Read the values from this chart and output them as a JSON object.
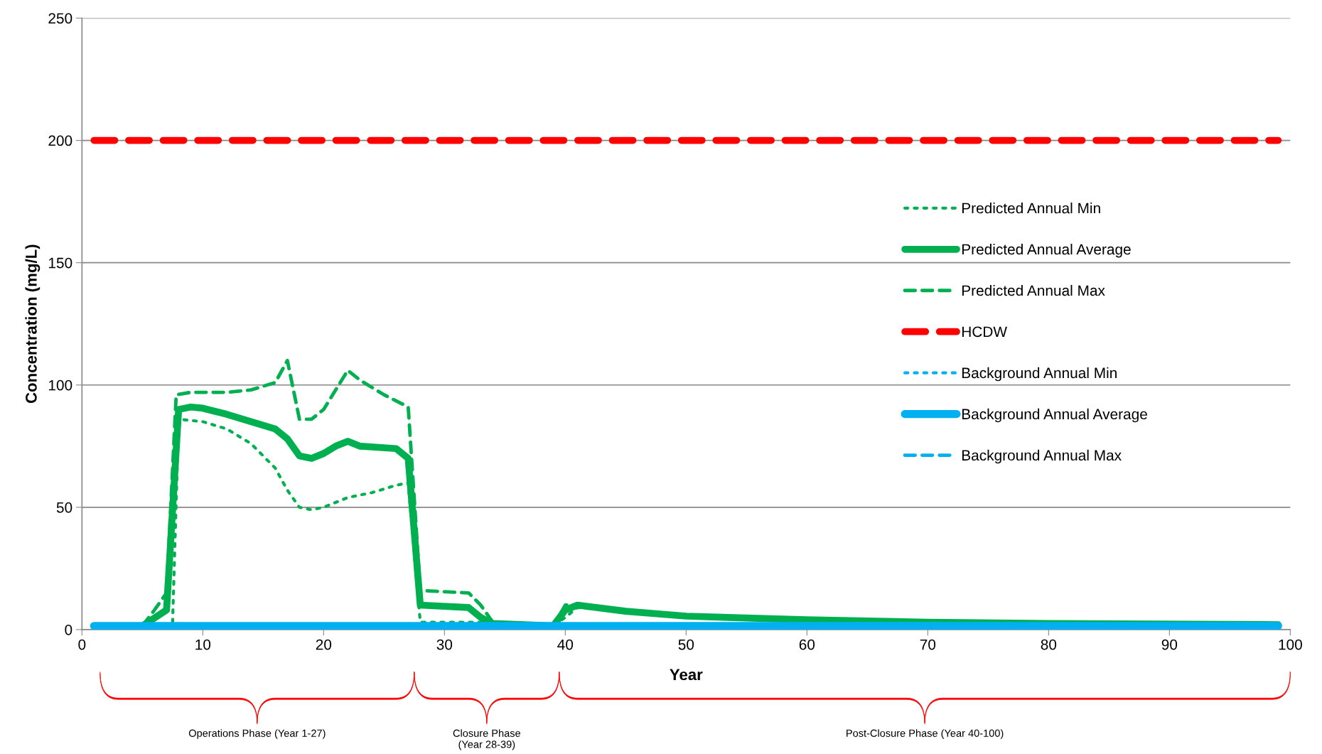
{
  "chart_data": {
    "type": "line",
    "xlabel": "Year",
    "ylabel": "Concentration (mg/L)",
    "xlim": [
      0,
      100
    ],
    "xticks": [
      0,
      10,
      20,
      30,
      40,
      50,
      60,
      70,
      80,
      90,
      100
    ],
    "ylim": [
      0,
      250
    ],
    "yticks": [
      0,
      50,
      100,
      150,
      200,
      250
    ],
    "grid": "y",
    "legend": "right",
    "series": [
      {
        "name": "Predicted Annual Min",
        "color": "#00b050",
        "line_style": "dotted",
        "x": [
          7.5,
          8,
          10,
          12,
          14,
          16,
          17,
          18,
          19,
          20,
          22,
          24,
          26,
          27,
          28,
          33,
          34,
          39,
          40,
          41,
          45,
          50,
          60,
          70,
          80,
          99
        ],
        "values": [
          3,
          86,
          85,
          82,
          76,
          66,
          57,
          50,
          49,
          50,
          54,
          56,
          59,
          60,
          3,
          3,
          2,
          1.5,
          5,
          9,
          7.5,
          5.5,
          4,
          3,
          2.5,
          2
        ]
      },
      {
        "name": "Predicted Annual Average",
        "color": "#00b050",
        "line_style": "solid",
        "x": [
          5,
          7,
          8,
          9,
          10,
          12,
          14,
          16,
          17,
          18,
          19,
          20,
          21,
          22,
          23,
          26,
          27,
          28,
          32,
          33,
          34,
          39,
          40,
          41,
          45,
          50,
          60,
          70,
          80,
          99
        ],
        "values": [
          1.5,
          8,
          90,
          91,
          90.5,
          88,
          85,
          82,
          78,
          71,
          70,
          72,
          75,
          77,
          75,
          74,
          70,
          10,
          9,
          5,
          2.5,
          1.5,
          8,
          10,
          7.5,
          5.5,
          4,
          3,
          2.5,
          2
        ]
      },
      {
        "name": "Predicted Annual Max",
        "color": "#00b050",
        "line_style": "dashed",
        "x": [
          5,
          6,
          7,
          7.8,
          9,
          12,
          14,
          16,
          17,
          18,
          19,
          20,
          22,
          23,
          25,
          27,
          28,
          32,
          33,
          34,
          39,
          40,
          41,
          45,
          50,
          60,
          70,
          80,
          99
        ],
        "values": [
          1.5,
          8,
          15,
          96,
          97,
          97,
          98,
          101,
          110,
          86,
          86,
          90,
          106,
          102,
          96,
          91,
          16,
          15,
          10,
          3,
          1.5,
          10,
          10,
          7.5,
          5.5,
          4,
          3,
          2.5,
          2
        ]
      },
      {
        "name": "HCDW",
        "color": "#ff0000",
        "line_style": "dashed",
        "x": [
          1,
          99
        ],
        "values": [
          200,
          200
        ]
      },
      {
        "name": "Background Annual Min",
        "color": "#00b0f0",
        "line_style": "dotted"
      },
      {
        "name": "Background Annual Average",
        "color": "#00b0f0",
        "line_style": "solid",
        "x": [
          1,
          99
        ],
        "values": [
          1.5,
          1.5
        ]
      },
      {
        "name": "Background Annual Max",
        "color": "#00b0f0",
        "line_style": "dashed"
      }
    ],
    "annotations": [
      "Operations Phase (Year 1-27)",
      "Closure Phase\n(Year 28-39)",
      "Post-Closure Phase (Year 40-100)"
    ]
  }
}
